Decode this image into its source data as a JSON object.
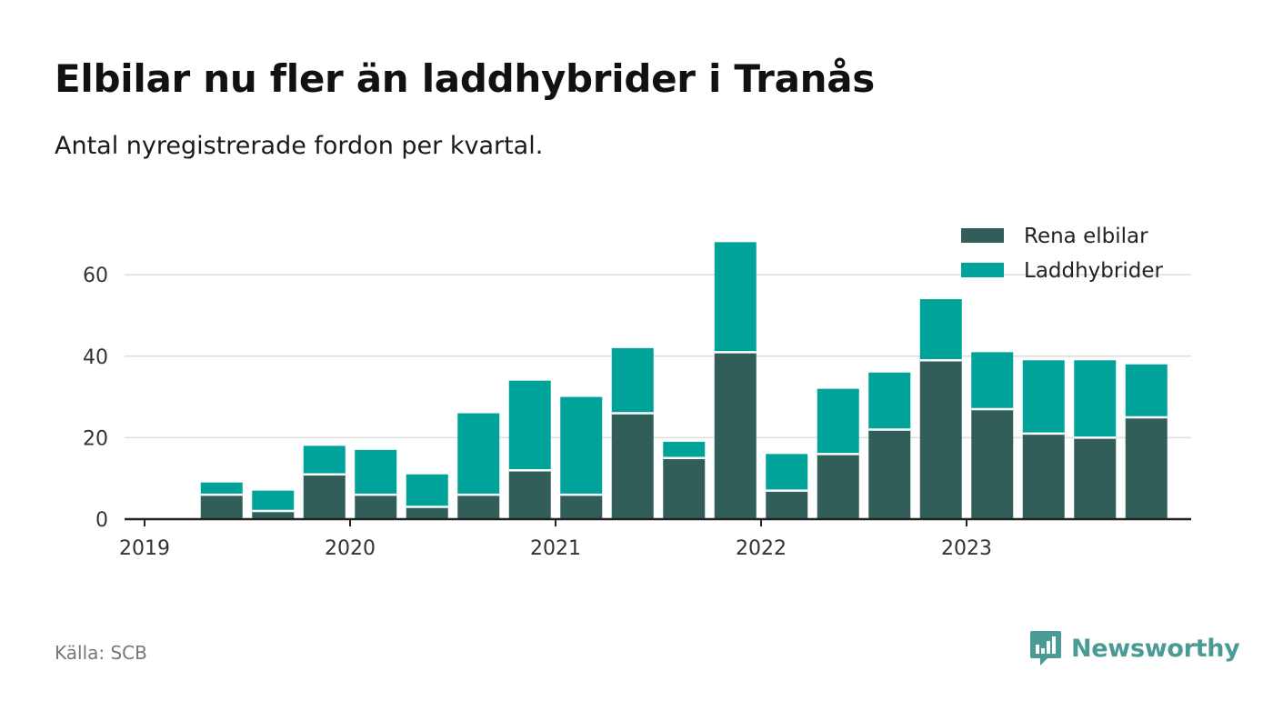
{
  "title": "Elbilar nu fler än laddhybrider i Tranås",
  "subtitle": "Antal nyregistrerade fordon per kvartal.",
  "source": "Källa: SCB",
  "brand": "Newsworthy",
  "colors": {
    "rena": "#325e5a",
    "ladd": "#00a39a",
    "grid": "#dddddd",
    "axis": "#222222",
    "brand": "#4a9a95"
  },
  "chart_data": {
    "type": "bar",
    "stacked": true,
    "title": "Elbilar nu fler än laddhybrider i Tranås",
    "xlabel": "",
    "ylabel": "",
    "ylim": [
      0,
      72
    ],
    "yticks": [
      0,
      20,
      40,
      60
    ],
    "xtick_labels": [
      "2019",
      "2020",
      "2021",
      "2022",
      "2023"
    ],
    "categories": [
      "2019 Q1",
      "2019 Q2",
      "2019 Q3",
      "2019 Q4",
      "2020 Q1",
      "2020 Q2",
      "2020 Q3",
      "2020 Q4",
      "2021 Q1",
      "2021 Q2",
      "2021 Q3",
      "2021 Q4",
      "2022 Q1",
      "2022 Q2",
      "2022 Q3",
      "2022 Q4",
      "2023 Q1",
      "2023 Q2",
      "2023 Q3",
      "2023 Q4"
    ],
    "series": [
      {
        "name": "Rena elbilar",
        "values": [
          0,
          6,
          2,
          11,
          6,
          3,
          6,
          12,
          6,
          26,
          15,
          41,
          7,
          16,
          22,
          39,
          27,
          21,
          20,
          25
        ]
      },
      {
        "name": "Laddhybrider",
        "values": [
          0,
          3,
          5,
          7,
          11,
          8,
          20,
          22,
          24,
          16,
          4,
          27,
          9,
          16,
          14,
          15,
          14,
          18,
          19,
          13
        ]
      }
    ],
    "legend_position": "top-right"
  }
}
